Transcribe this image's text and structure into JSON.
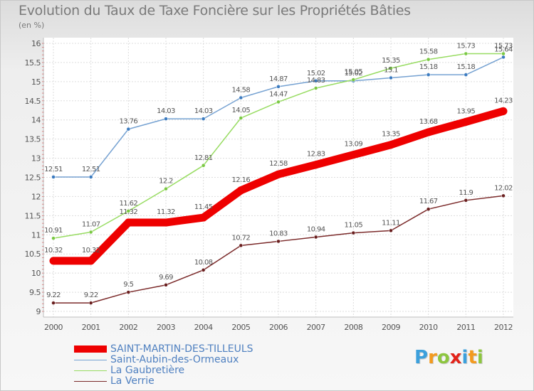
{
  "title": "Evolution du Taux de Taxe Foncière sur les Propriétés Bâties",
  "subtitle": "(en %)",
  "chart_data": {
    "type": "line",
    "x": [
      "2000",
      "2001",
      "2002",
      "2003",
      "2004",
      "2005",
      "2006",
      "2007",
      "2008",
      "2009",
      "2010",
      "2011",
      "2012"
    ],
    "ylim": [
      9,
      16
    ],
    "yticks": [
      "9",
      "9.5",
      "10",
      "10.5",
      "11",
      "11.5",
      "12",
      "12.5",
      "13",
      "13.5",
      "14",
      "14.5",
      "15",
      "15.5",
      "16"
    ],
    "grid": true,
    "legend_position": "bottom-left",
    "series": [
      {
        "name": "SAINT-MARTIN-DES-TILLEULS",
        "color": "#ee0000",
        "width": 11,
        "marker": 11,
        "values": [
          10.32,
          10.32,
          11.32,
          11.32,
          11.45,
          12.16,
          12.58,
          12.83,
          13.09,
          13.35,
          13.68,
          13.95,
          14.23
        ],
        "labels": [
          "10.32",
          "10.32",
          "11.32",
          "11.32",
          "11.45",
          "12.16",
          "12.58",
          "12.83",
          "13.09",
          "13.35",
          "13.68",
          "13.95",
          "14.23"
        ]
      },
      {
        "name": "Saint-Aubin-des-Ormeaux",
        "color": "#76a2d2",
        "marker_color": "#3b7bc0",
        "width": 1.5,
        "marker": 5,
        "values": [
          12.51,
          12.51,
          13.76,
          14.03,
          14.03,
          14.58,
          14.87,
          15.02,
          15.02,
          15.1,
          15.18,
          15.18,
          15.64
        ],
        "labels": [
          "12.51",
          "12.51",
          "13.76",
          "14.03",
          "14.03",
          "14.58",
          "14.87",
          "15.02",
          "15.02",
          "15.1",
          "15.18",
          "15.18",
          "15.64"
        ]
      },
      {
        "name": "La Gaubretière",
        "color": "#98dc62",
        "marker_color": "#7ac843",
        "width": 1.5,
        "marker": 5,
        "values": [
          10.91,
          11.07,
          11.62,
          12.2,
          12.81,
          14.05,
          14.47,
          14.83,
          15.05,
          15.35,
          15.58,
          15.73,
          15.73
        ],
        "labels": [
          "10.91",
          "11.07",
          "11.62",
          "12.2",
          "12.81",
          "14.05",
          "14.47",
          "14.83",
          "15.05",
          "15.35",
          "15.58",
          "15.73",
          "15.73"
        ]
      },
      {
        "name": "La Verrie",
        "color": "#7b2a2a",
        "marker_color": "#6a1f1f",
        "width": 1.5,
        "marker": 5,
        "values": [
          9.22,
          9.22,
          9.5,
          9.69,
          10.08,
          10.72,
          10.83,
          10.94,
          11.05,
          11.11,
          11.67,
          11.9,
          12.02
        ],
        "labels": [
          "9.22",
          "9.22",
          "9.5",
          "9.69",
          "10.08",
          "10.72",
          "10.83",
          "10.94",
          "11.05",
          "11.11",
          "11.67",
          "11.9",
          "12.02"
        ]
      }
    ]
  },
  "legend": {
    "items": [
      {
        "label": "SAINT-MARTIN-DES-TILLEULS",
        "color": "#ee0000",
        "thickness": 10
      },
      {
        "label": "Saint-Aubin-des-Ormeaux",
        "color": "#76a2d2",
        "thickness": 1
      },
      {
        "label": "La Gaubretière",
        "color": "#98dc62",
        "thickness": 1
      },
      {
        "label": "La Verrie",
        "color": "#7b2a2a",
        "thickness": 1
      }
    ]
  },
  "logo": {
    "letters": [
      "P",
      "r",
      "o",
      "x",
      "i",
      "t",
      "i"
    ],
    "colors": [
      "#3ca0dc",
      "#f39a1e",
      "#8dc63f",
      "#e2231a",
      "#3ca0dc",
      "#f39a1e",
      "#8dc63f"
    ]
  }
}
